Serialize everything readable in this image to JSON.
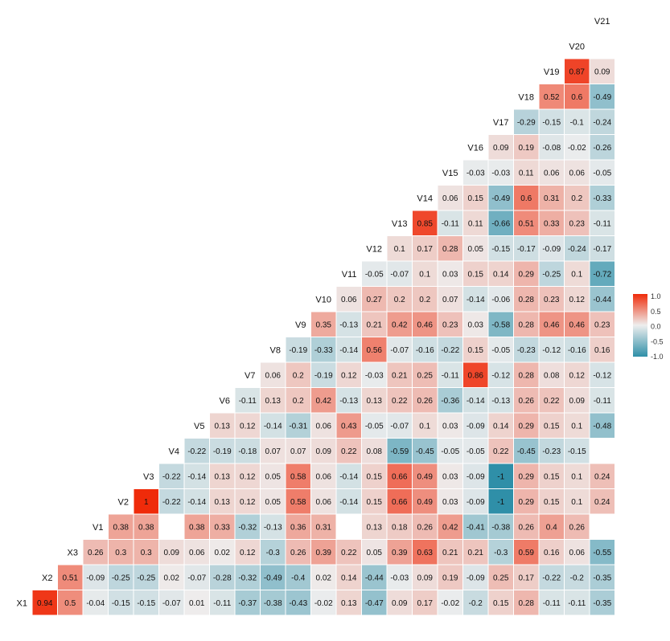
{
  "chart_data": {
    "type": "heatmap",
    "title": "",
    "variables": [
      "X1",
      "X2",
      "X3",
      "V1",
      "V2",
      "V3",
      "V4",
      "V5",
      "V6",
      "V7",
      "V8",
      "V9",
      "V10",
      "V11",
      "V12",
      "V13",
      "V14",
      "V15",
      "V16",
      "V17",
      "V18",
      "V19",
      "V20",
      "V21"
    ],
    "rows": [
      {
        "name": "X1",
        "values": [
          0.94,
          0.5,
          -0.04,
          -0.15,
          -0.15,
          -0.07,
          0.01,
          -0.11,
          -0.37,
          -0.38,
          -0.43,
          -0.02,
          0.13,
          -0.47,
          0.09,
          0.17,
          -0.02,
          -0.2,
          0.15,
          0.28,
          -0.11,
          -0.11,
          -0.35
        ]
      },
      {
        "name": "X2",
        "values": [
          0.51,
          -0.09,
          -0.25,
          -0.25,
          0.02,
          -0.07,
          -0.28,
          -0.32,
          -0.49,
          -0.4,
          0.02,
          0.14,
          -0.44,
          -0.03,
          0.09,
          0.19,
          -0.09,
          0.25,
          0.17,
          -0.22,
          -0.2,
          -0.35
        ]
      },
      {
        "name": "X3",
        "values": [
          0.26,
          0.3,
          0.3,
          0.09,
          0.06,
          0.02,
          0.12,
          -0.3,
          0.26,
          0.39,
          0.22,
          0.05,
          0.39,
          0.63,
          0.21,
          0.21,
          -0.3,
          0.59,
          0.16,
          0.06,
          -0.55
        ]
      },
      {
        "name": "V1",
        "values": [
          0.38,
          0.38,
          null,
          0.38,
          0.33,
          -0.32,
          -0.13,
          0.36,
          0.31,
          null,
          0.13,
          0.18,
          0.26,
          0.42,
          -0.41,
          -0.38,
          0.26,
          0.4,
          0.26,
          null
        ]
      },
      {
        "name": "V2",
        "values": [
          1,
          -0.22,
          -0.14,
          0.13,
          0.12,
          0.05,
          0.58,
          0.06,
          -0.14,
          0.15,
          0.66,
          0.49,
          0.03,
          -0.09,
          -1,
          0.29,
          0.15,
          0.1,
          0.24
        ]
      },
      {
        "name": "V3",
        "values": [
          -0.22,
          -0.14,
          0.13,
          0.12,
          0.05,
          0.58,
          0.06,
          -0.14,
          0.15,
          0.66,
          0.49,
          0.03,
          -0.09,
          -1,
          0.29,
          0.15,
          0.1,
          0.24
        ]
      },
      {
        "name": "V4",
        "values": [
          -0.22,
          -0.19,
          -0.18,
          0.07,
          0.07,
          0.09,
          0.22,
          0.08,
          -0.59,
          -0.45,
          -0.05,
          -0.05,
          0.22,
          -0.45,
          -0.23,
          -0.15,
          null
        ]
      },
      {
        "name": "V5",
        "values": [
          0.13,
          0.12,
          -0.14,
          -0.31,
          0.06,
          0.43,
          -0.05,
          -0.07,
          0.1,
          0.03,
          -0.09,
          0.14,
          0.29,
          0.15,
          0.1,
          -0.48
        ]
      },
      {
        "name": "V6",
        "values": [
          -0.11,
          0.13,
          0.2,
          0.42,
          -0.13,
          0.13,
          0.22,
          0.26,
          -0.36,
          -0.14,
          -0.13,
          0.26,
          0.22,
          0.09,
          -0.11
        ]
      },
      {
        "name": "V7",
        "values": [
          0.06,
          0.2,
          -0.19,
          0.12,
          -0.03,
          0.21,
          0.25,
          -0.11,
          0.86,
          -0.12,
          0.28,
          0.08,
          0.12,
          -0.12
        ]
      },
      {
        "name": "V8",
        "values": [
          -0.19,
          -0.33,
          -0.14,
          0.56,
          -0.07,
          -0.16,
          -0.22,
          0.15,
          -0.05,
          -0.23,
          -0.12,
          -0.16,
          0.16
        ]
      },
      {
        "name": "V9",
        "values": [
          0.35,
          -0.13,
          0.21,
          0.42,
          0.46,
          0.23,
          0.03,
          -0.58,
          0.28,
          0.46,
          0.46,
          0.23
        ]
      },
      {
        "name": "V10",
        "values": [
          0.06,
          0.27,
          0.2,
          0.2,
          0.07,
          -0.14,
          -0.06,
          0.28,
          0.23,
          0.12,
          -0.44
        ]
      },
      {
        "name": "V11",
        "values": [
          -0.05,
          -0.07,
          0.1,
          0.03,
          0.15,
          0.14,
          0.29,
          -0.25,
          0.1,
          -0.72
        ]
      },
      {
        "name": "V12",
        "values": [
          0.1,
          0.17,
          0.28,
          0.05,
          -0.15,
          -0.17,
          -0.09,
          -0.24,
          -0.17
        ]
      },
      {
        "name": "V13",
        "values": [
          0.85,
          -0.11,
          0.11,
          -0.66,
          0.51,
          0.33,
          0.23,
          -0.11
        ]
      },
      {
        "name": "V14",
        "values": [
          0.06,
          0.15,
          -0.49,
          0.6,
          0.31,
          0.2,
          -0.33
        ]
      },
      {
        "name": "V15",
        "values": [
          -0.03,
          -0.03,
          0.11,
          0.06,
          0.06,
          -0.05
        ]
      },
      {
        "name": "V16",
        "values": [
          0.09,
          0.19,
          -0.08,
          -0.02,
          -0.26
        ]
      },
      {
        "name": "V17",
        "values": [
          -0.29,
          -0.15,
          -0.1,
          -0.24
        ]
      },
      {
        "name": "V18",
        "values": [
          0.52,
          0.6,
          -0.49
        ]
      },
      {
        "name": "V19",
        "values": [
          0.87,
          0.09
        ]
      },
      {
        "name": "V20",
        "values": []
      },
      {
        "name": "V21",
        "values": []
      }
    ],
    "color_scale": {
      "low": "#2f8fa8",
      "mid": "#eeeeee",
      "high": "#ef2b0a",
      "range": [
        -1,
        1
      ]
    },
    "legend": {
      "position": "right",
      "ticks": [
        "1.0",
        "0.5",
        "0.0",
        "-0.5",
        "-1.0"
      ]
    }
  }
}
